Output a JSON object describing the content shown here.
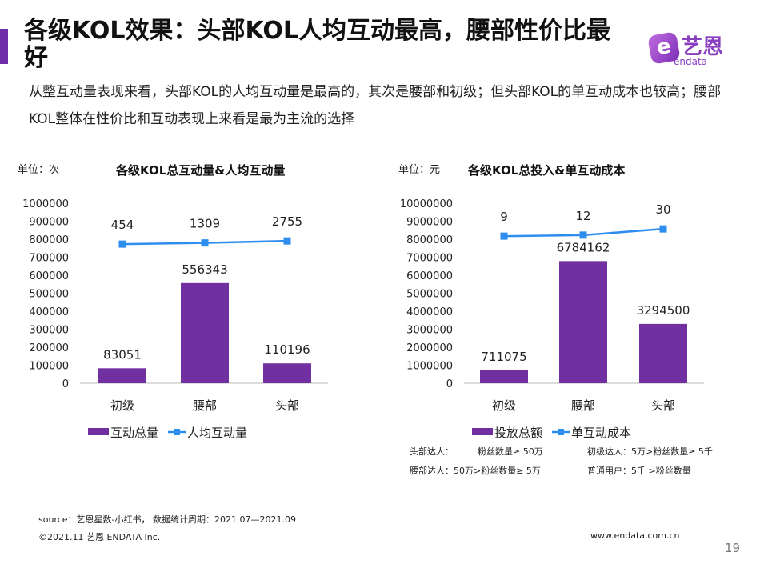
{
  "header": {
    "title": "各级KOL效果：头部KOL人均互动最高，腰部性价比最好",
    "logo_cn": "艺恩",
    "logo_en": "endata"
  },
  "description": "从整互动量表现来看，头部KOL的人均互动量是最高的，其次是腰部和初级；但头部KOL的单互动成本也较高；腰部KOL整体在性价比和互动表现上来看是最为主流的选择",
  "colors": {
    "bar": "#7030a0",
    "line": "#2e8ef0"
  },
  "chart_data": [
    {
      "type": "bar+line",
      "unit_label": "单位：次",
      "title": "各级KOL总互动量&人均互动量",
      "categories": [
        "初级",
        "腰部",
        "头部"
      ],
      "ylim": [
        0,
        1000000
      ],
      "yticks": [
        "0",
        "100000",
        "200000",
        "300000",
        "400000",
        "500000",
        "600000",
        "700000",
        "800000",
        "900000",
        "1000000"
      ],
      "series": [
        {
          "name": "互动总量",
          "type": "bar",
          "values": [
            83051,
            556343,
            110196
          ]
        },
        {
          "name": "人均互动量",
          "type": "line",
          "values": [
            454,
            1309,
            2755
          ],
          "ylim": [
            -100000,
            30000
          ]
        }
      ]
    },
    {
      "type": "bar+line",
      "unit_label": "单位：元",
      "title": "各级KOL总投入&单互动成本",
      "categories": [
        "初级",
        "腰部",
        "头部"
      ],
      "ylim": [
        0,
        10000000
      ],
      "yticks": [
        "0",
        "1000000",
        "2000000",
        "3000000",
        "4000000",
        "5000000",
        "6000000",
        "7000000",
        "8000000",
        "9000000",
        "10000000"
      ],
      "series": [
        {
          "name": "投放总额",
          "type": "bar",
          "values": [
            711075,
            6784162,
            3294500
          ]
        },
        {
          "name": "单互动成本",
          "type": "line",
          "values": [
            9,
            12,
            30
          ],
          "ylim": [
            -420,
            105
          ]
        }
      ]
    }
  ],
  "notes": [
    {
      "label": "头部达人：",
      "rule": "粉丝数量≥ 50万"
    },
    {
      "label": "初级达人：",
      "rule": "5万>粉丝数量≥ 5千"
    },
    {
      "label": "腰部达人：",
      "rule": "50万>粉丝数量≥ 5万"
    },
    {
      "label": "普通用户：",
      "rule": "5千 >粉丝数量"
    }
  ],
  "footer": {
    "source": "source：艺恩星数-小红书，  数据统计周期：2021.07—2021.09",
    "copyright": "©2021.11 艺恩 ENDATA Inc.",
    "url": "www.endata.com.cn",
    "page": "19"
  }
}
